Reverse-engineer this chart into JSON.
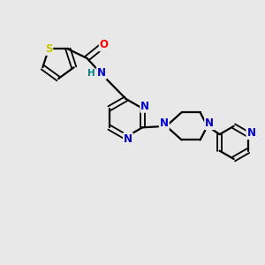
{
  "background_color": "#e8e8e8",
  "bond_color": "#000000",
  "S_color": "#c8c800",
  "N_color": "#0000cc",
  "O_color": "#ff0000",
  "H_color": "#008080",
  "figsize": [
    3.0,
    3.0
  ],
  "dpi": 100,
  "xlim": [
    0,
    10
  ],
  "ylim": [
    0,
    10
  ]
}
